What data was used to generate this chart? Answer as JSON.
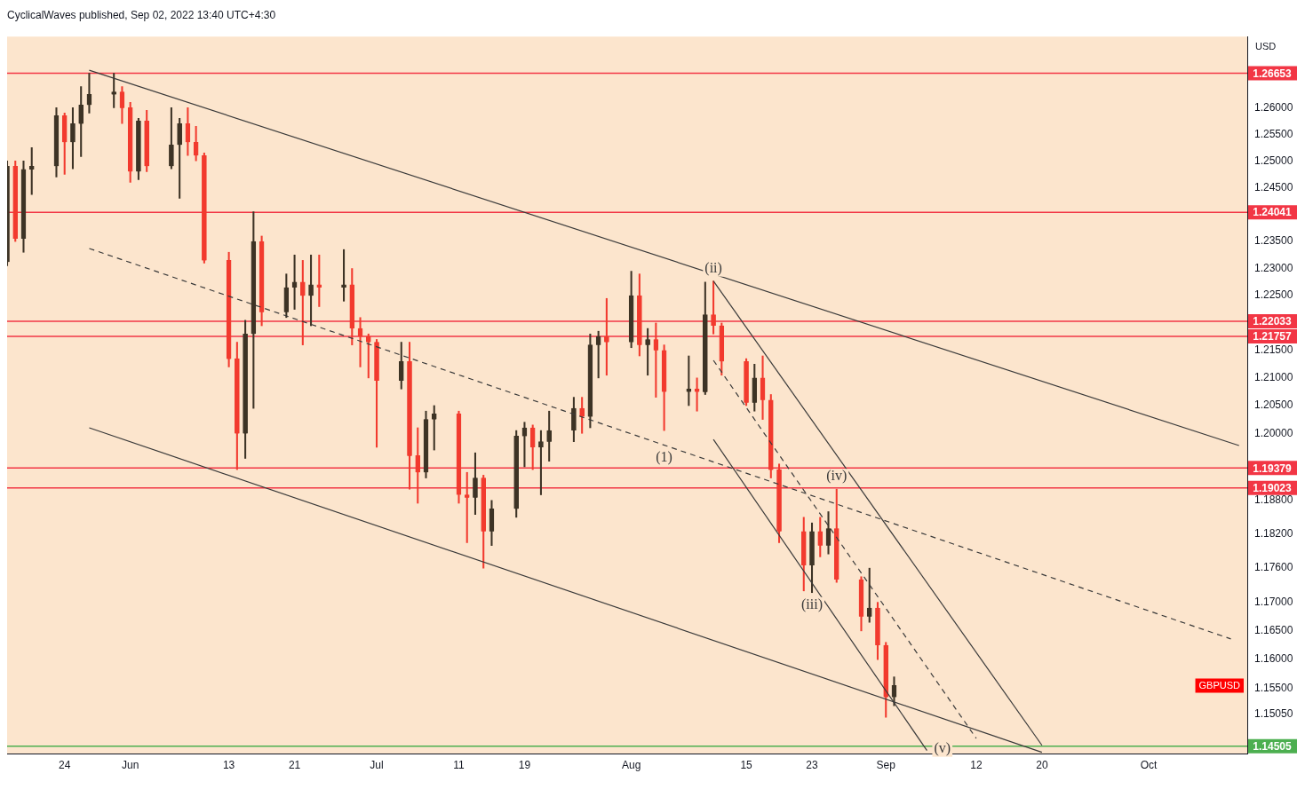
{
  "chart_data": {
    "type": "candlestick",
    "title": "CyclicalWaves published, Sep 02, 2022 13:40 UTC+4:30",
    "ylabel": "USD",
    "log": true,
    "x": [
      "2022-05-17",
      "2022-05-18",
      "2022-05-19",
      "2022-05-20",
      "2022-05-23",
      "2022-05-24",
      "2022-05-25",
      "2022-05-26",
      "2022-05-27",
      "2022-05-30",
      "2022-05-31",
      "2022-06-01",
      "2022-06-02",
      "2022-06-03",
      "2022-06-06",
      "2022-06-07",
      "2022-06-08",
      "2022-06-09",
      "2022-06-10",
      "2022-06-13",
      "2022-06-14",
      "2022-06-15",
      "2022-06-16",
      "2022-06-17",
      "2022-06-20",
      "2022-06-21",
      "2022-06-22",
      "2022-06-23",
      "2022-06-24",
      "2022-06-27",
      "2022-06-28",
      "2022-06-29",
      "2022-06-30",
      "2022-07-01",
      "2022-07-04",
      "2022-07-05",
      "2022-07-06",
      "2022-07-07",
      "2022-07-08",
      "2022-07-11",
      "2022-07-12",
      "2022-07-13",
      "2022-07-14",
      "2022-07-15",
      "2022-07-18",
      "2022-07-19",
      "2022-07-20",
      "2022-07-21",
      "2022-07-22",
      "2022-07-25",
      "2022-07-26",
      "2022-07-27",
      "2022-07-28",
      "2022-07-29",
      "2022-08-01",
      "2022-08-02",
      "2022-08-03",
      "2022-08-04",
      "2022-08-05",
      "2022-08-08",
      "2022-08-09",
      "2022-08-10",
      "2022-08-11",
      "2022-08-12",
      "2022-08-15",
      "2022-08-16",
      "2022-08-17",
      "2022-08-18",
      "2022-08-19",
      "2022-08-22",
      "2022-08-23",
      "2022-08-24",
      "2022-08-25",
      "2022-08-26",
      "2022-08-29",
      "2022-08-30",
      "2022-08-31",
      "2022-09-01",
      "2022-09-02"
    ],
    "ohlc": [
      [
        1.2312,
        1.25,
        1.2305,
        1.249
      ],
      [
        1.249,
        1.25,
        1.235,
        1.2355
      ],
      [
        1.2355,
        1.25,
        1.233,
        1.2484
      ],
      [
        1.2484,
        1.2525,
        1.2437,
        1.249
      ],
      [
        1.249,
        1.26,
        1.247,
        1.2585
      ],
      [
        1.2585,
        1.259,
        1.2475,
        1.2535
      ],
      [
        1.2535,
        1.26,
        1.2485,
        1.257
      ],
      [
        1.257,
        1.264,
        1.2508,
        1.2605
      ],
      [
        1.2605,
        1.2665,
        1.259,
        1.2625
      ],
      [
        1.2625,
        1.2665,
        1.26,
        1.263
      ],
      [
        1.263,
        1.264,
        1.257,
        1.26
      ],
      [
        1.26,
        1.261,
        1.246,
        1.248
      ],
      [
        1.248,
        1.258,
        1.2465,
        1.2575
      ],
      [
        1.2575,
        1.2595,
        1.248,
        1.249
      ],
      [
        1.249,
        1.26,
        1.2485,
        1.253
      ],
      [
        1.253,
        1.258,
        1.243,
        1.257
      ],
      [
        1.257,
        1.26,
        1.251,
        1.2535
      ],
      [
        1.2535,
        1.2565,
        1.25,
        1.251
      ],
      [
        1.251,
        1.2515,
        1.231,
        1.2315
      ],
      [
        1.2315,
        1.233,
        1.212,
        1.2135
      ],
      [
        1.2135,
        1.2165,
        1.1935,
        1.2
      ],
      [
        1.2,
        1.2205,
        1.1955,
        1.218
      ],
      [
        1.218,
        1.2405,
        1.2045,
        1.235
      ],
      [
        1.235,
        1.236,
        1.2195,
        1.222
      ],
      [
        1.222,
        1.229,
        1.221,
        1.2265
      ],
      [
        1.2265,
        1.2325,
        1.2225,
        1.2275
      ],
      [
        1.2275,
        1.2315,
        1.216,
        1.225
      ],
      [
        1.225,
        1.2325,
        1.2195,
        1.227
      ],
      [
        1.227,
        1.2325,
        1.223,
        1.2265
      ],
      [
        1.2265,
        1.2335,
        1.224,
        1.227
      ],
      [
        1.227,
        1.23,
        1.216,
        1.219
      ],
      [
        1.219,
        1.221,
        1.212,
        1.2175
      ],
      [
        1.2175,
        1.218,
        1.21,
        1.2165
      ],
      [
        1.2165,
        1.217,
        1.1975,
        1.2095
      ],
      [
        1.2095,
        1.2165,
        1.208,
        1.213
      ],
      [
        1.213,
        1.2165,
        1.19,
        1.196
      ],
      [
        1.196,
        1.201,
        1.1875,
        1.193
      ],
      [
        1.193,
        1.204,
        1.192,
        1.2025
      ],
      [
        1.2025,
        1.205,
        1.197,
        1.2035
      ],
      [
        1.2035,
        1.204,
        1.1875,
        1.189
      ],
      [
        1.189,
        1.193,
        1.1805,
        1.1885
      ],
      [
        1.1885,
        1.1965,
        1.1855,
        1.192
      ],
      [
        1.192,
        1.1925,
        1.176,
        1.1825
      ],
      [
        1.1825,
        1.188,
        1.18,
        1.1865
      ],
      [
        1.1865,
        1.2005,
        1.185,
        1.1995
      ],
      [
        1.1995,
        1.202,
        1.194,
        1.201
      ],
      [
        1.201,
        1.2015,
        1.1935,
        1.1975
      ],
      [
        1.1975,
        1.2005,
        1.189,
        1.1985
      ],
      [
        1.1985,
        1.204,
        1.195,
        1.2005
      ],
      [
        1.2005,
        1.2065,
        1.1985,
        1.2045
      ],
      [
        1.2045,
        1.2065,
        1.2,
        1.203
      ],
      [
        1.203,
        1.218,
        1.201,
        1.216
      ],
      [
        1.216,
        1.2185,
        1.21,
        1.2175
      ],
      [
        1.2175,
        1.2245,
        1.2105,
        1.2165
      ],
      [
        1.2165,
        1.2295,
        1.2155,
        1.225
      ],
      [
        1.225,
        1.229,
        1.214,
        1.216
      ],
      [
        1.216,
        1.219,
        1.2105,
        1.217
      ],
      [
        1.217,
        1.22,
        1.2065,
        1.215
      ],
      [
        1.215,
        1.216,
        1.2005,
        1.2075
      ],
      [
        1.2075,
        1.214,
        1.205,
        1.208
      ],
      [
        1.208,
        1.21,
        1.204,
        1.2075
      ],
      [
        1.2075,
        1.2275,
        1.207,
        1.2215
      ],
      [
        1.2215,
        1.2277,
        1.218,
        1.2195
      ],
      [
        1.2195,
        1.22,
        1.2105,
        1.213
      ],
      [
        1.213,
        1.2135,
        1.205,
        1.2055
      ],
      [
        1.2055,
        1.2125,
        1.204,
        1.21
      ],
      [
        1.21,
        1.214,
        1.2025,
        1.206
      ],
      [
        1.206,
        1.207,
        1.192,
        1.1935
      ],
      [
        1.1935,
        1.1945,
        1.1805,
        1.1825
      ],
      [
        1.1825,
        1.185,
        1.172,
        1.1765
      ],
      [
        1.1765,
        1.184,
        1.1717,
        1.1825
      ],
      [
        1.1825,
        1.185,
        1.178,
        1.18
      ],
      [
        1.18,
        1.186,
        1.1785,
        1.183
      ],
      [
        1.183,
        1.19,
        1.1735,
        1.174
      ],
      [
        1.174,
        1.1745,
        1.165,
        1.1675
      ],
      [
        1.1675,
        1.176,
        1.1665,
        1.169
      ],
      [
        1.169,
        1.17,
        1.16,
        1.1625
      ],
      [
        1.1625,
        1.163,
        1.15,
        1.1535
      ],
      [
        1.1535,
        1.157,
        1.152,
        1.1555
      ]
    ],
    "colors": [
      "#3d3325",
      "#f23a2e",
      "#3d3325",
      "#3d3325",
      "#3d3325",
      "#f23a2e",
      "#3d3325",
      "#3d3325",
      "#3d3325",
      "#3d3325",
      "#f23a2e",
      "#f23a2e",
      "#3d3325",
      "#f23a2e",
      "#3d3325",
      "#3d3325",
      "#f23a2e",
      "#f23a2e",
      "#f23a2e",
      "#f23a2e",
      "#f23a2e",
      "#3d3325",
      "#3d3325",
      "#f23a2e",
      "#3d3325",
      "#3d3325",
      "#f23a2e",
      "#3d3325",
      "#f23a2e",
      "#3d3325",
      "#f23a2e",
      "#f23a2e",
      "#f23a2e",
      "#f23a2e",
      "#3d3325",
      "#f23a2e",
      "#f23a2e",
      "#3d3325",
      "#3d3325",
      "#f23a2e",
      "#f23a2e",
      "#3d3325",
      "#f23a2e",
      "#3d3325",
      "#3d3325",
      "#3d3325",
      "#f23a2e",
      "#3d3325",
      "#3d3325",
      "#3d3325",
      "#f23a2e",
      "#3d3325",
      "#3d3325",
      "#f23a2e",
      "#3d3325",
      "#f23a2e",
      "#3d3325",
      "#f23a2e",
      "#f23a2e",
      "#3d3325",
      "#f23a2e",
      "#3d3325",
      "#f23a2e",
      "#f23a2e",
      "#f23a2e",
      "#3d3325",
      "#f23a2e",
      "#f23a2e",
      "#f23a2e",
      "#f23a2e",
      "#3d3325",
      "#f23a2e",
      "#3d3325",
      "#f23a2e",
      "#f23a2e",
      "#3d3325",
      "#f23a2e",
      "#f23a2e",
      "#3d3325"
    ],
    "series": [
      {
        "type": "line",
        "color": "#3a3a3a",
        "line_style": "solid",
        "x": [
          "2022-05-27",
          "2022-10-14"
        ],
        "values": [
          1.2671,
          1.1978
        ]
      },
      {
        "type": "line",
        "color": "#3a3a3a",
        "line_style": "dashed",
        "x": [
          "2022-05-27",
          "2022-10-13"
        ],
        "values": [
          1.2337,
          1.1636
        ]
      },
      {
        "type": "line",
        "color": "#3a3a3a",
        "line_style": "solid",
        "x": [
          "2022-05-27",
          "2022-09-20"
        ],
        "values": [
          1.201,
          1.144
        ]
      },
      {
        "type": "line",
        "color": "#3a3a3a",
        "line_style": "solid",
        "x": [
          "2022-08-11",
          "2022-09-20"
        ],
        "values": [
          1.2277,
          1.1452
        ]
      },
      {
        "type": "line",
        "color": "#3a3a3a",
        "line_style": "solid",
        "x": [
          "2022-08-11",
          "2022-09-06"
        ],
        "values": [
          1.1989,
          1.1443
        ]
      },
      {
        "type": "line",
        "color": "#3a3a3a",
        "line_style": "dashed",
        "x": [
          "2022-08-11",
          "2022-09-12"
        ],
        "values": [
          1.2132,
          1.1464
        ]
      }
    ],
    "ref_lines": [
      {
        "axis": "y",
        "value": 1.26653,
        "label": "1.26653",
        "color": "#f23645"
      },
      {
        "axis": "y",
        "value": 1.24041,
        "label": "1.24041",
        "color": "#f23645"
      },
      {
        "axis": "y",
        "value": 1.22033,
        "label": "1.22033",
        "color": "#f23645"
      },
      {
        "axis": "y",
        "value": 1.21757,
        "label": "1.21757",
        "color": "#f23645"
      },
      {
        "axis": "y",
        "value": 1.19379,
        "label": "1.19379",
        "color": "#f23645"
      },
      {
        "axis": "y",
        "value": 1.19023,
        "label": "1.19023",
        "color": "#f23645"
      },
      {
        "axis": "y",
        "value": 1.14505,
        "label": "1.14505",
        "color": "#4caf50"
      }
    ],
    "annotations": [
      {
        "text": "(ii)",
        "x": "2022-08-11",
        "y": 1.2277
      },
      {
        "text": "(1)",
        "x": "2022-08-05",
        "y": 1.1978
      },
      {
        "text": "(iii)",
        "x": "2022-08-23",
        "y": 1.1717
      },
      {
        "text": "(iv)",
        "x": "2022-08-26",
        "y": 1.19
      },
      {
        "text": "(v)",
        "x": "2022-09-06",
        "y": 1.1443
      },
      "GBPUSD"
    ],
    "xlim": [
      "2022-05-17",
      "2022-10-15"
    ],
    "xticks": [
      {
        "value": "2022-05-24",
        "label": "24"
      },
      {
        "value": "2022-06-01",
        "label": "Jun"
      },
      {
        "value": "2022-06-13",
        "label": "13"
      },
      {
        "value": "2022-06-21",
        "label": "21"
      },
      {
        "value": "2022-07-01",
        "label": "Jul"
      },
      {
        "value": "2022-07-11",
        "label": "11"
      },
      {
        "value": "2022-07-19",
        "label": "19"
      },
      {
        "value": "2022-08-01",
        "label": "Aug"
      },
      {
        "value": "2022-08-15",
        "label": "15"
      },
      {
        "value": "2022-08-23",
        "label": "23"
      },
      {
        "value": "2022-09-01",
        "label": "Sep"
      },
      {
        "value": "2022-09-12",
        "label": "12"
      },
      {
        "value": "2022-09-20",
        "label": "20"
      },
      {
        "value": "2022-10-03",
        "label": "Oct"
      }
    ],
    "ylim": [
      1.1437,
      1.2735
    ],
    "yticks": [
      {
        "value": 1.1505,
        "label": "1.15050"
      },
      {
        "value": 1.155,
        "label": "1.15500"
      },
      {
        "value": 1.16,
        "label": "1.16000"
      },
      {
        "value": 1.165,
        "label": "1.16500"
      },
      {
        "value": 1.17,
        "label": "1.17000"
      },
      {
        "value": 1.176,
        "label": "1.17600"
      },
      {
        "value": 1.182,
        "label": "1.18200"
      },
      {
        "value": 1.188,
        "label": "1.18800"
      },
      {
        "value": 1.2,
        "label": "1.20000"
      },
      {
        "value": 1.205,
        "label": "1.20500"
      },
      {
        "value": 1.21,
        "label": "1.21000"
      },
      {
        "value": 1.215,
        "label": "1.21500"
      },
      {
        "value": 1.225,
        "label": "1.22500"
      },
      {
        "value": 1.23,
        "label": "1.23000"
      },
      {
        "value": 1.235,
        "label": "1.23500"
      },
      {
        "value": 1.245,
        "label": "1.24500"
      },
      {
        "value": 1.25,
        "label": "1.25000"
      },
      {
        "value": 1.255,
        "label": "1.25500"
      },
      {
        "value": 1.26,
        "label": "1.26000"
      }
    ]
  }
}
